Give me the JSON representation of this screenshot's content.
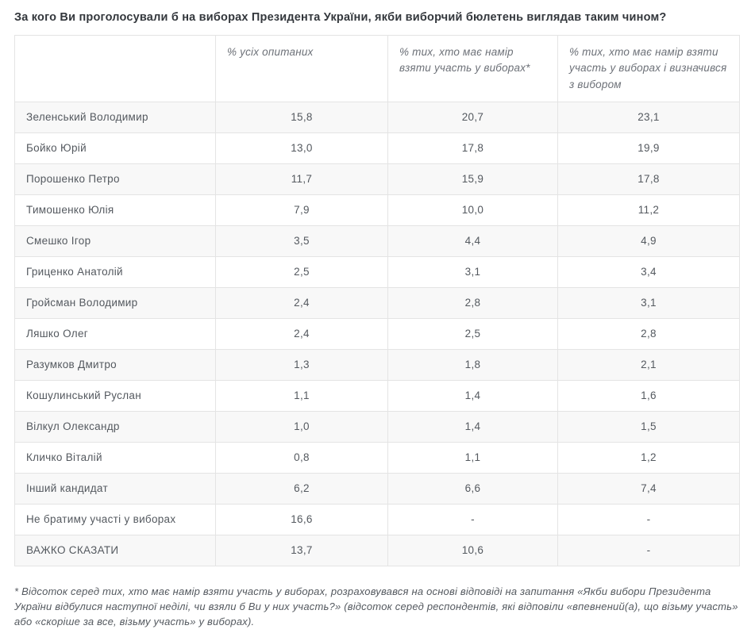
{
  "page": {
    "title": "За кого Ви проголосували б на виборах Президента України, якби виборчий бюлетень виглядав таким чином?",
    "footnote": "* Відсоток серед тих, хто має намір взяти участь у виборах, розраховувався на основі відповіді на запитання «Якби вибори Президента України відбулися наступної неділі, чи взяли б Ви у них участь?» (відсоток серед респондентів, які відповіли «впевнений(а), що візьму участь» або «скоріше за все, візьму участь» у виборах)."
  },
  "colors": {
    "row_stripe": "#f8f8f8",
    "border": "#e4e4e4",
    "body_text": "#54595f",
    "header_text": "#6d7178",
    "title_text": "#33373c"
  },
  "chart_data": {
    "type": "table",
    "title": "За кого Ви проголосували б на виборах Президента України, якби виборчий бюлетень виглядав таким чином?",
    "columns": [
      "",
      "% усіх опитаних",
      "% тих, хто має намір взяти участь у виборах*",
      "% тих, хто має намір взяти участь у виборах і визначився з вибором"
    ],
    "rows": [
      {
        "label": "Зеленський Володимир",
        "values": [
          "15,8",
          "20,7",
          "23,1"
        ]
      },
      {
        "label": "Бойко Юрій",
        "values": [
          "13,0",
          "17,8",
          "19,9"
        ]
      },
      {
        "label": "Порошенко Петро",
        "values": [
          "11,7",
          "15,9",
          "17,8"
        ]
      },
      {
        "label": "Тимошенко Юлія",
        "values": [
          "7,9",
          "10,0",
          "11,2"
        ]
      },
      {
        "label": "Смешко Ігор",
        "values": [
          "3,5",
          "4,4",
          "4,9"
        ]
      },
      {
        "label": "Гриценко Анатолій",
        "values": [
          "2,5",
          "3,1",
          "3,4"
        ]
      },
      {
        "label": "Гройсман Володимир",
        "values": [
          "2,4",
          "2,8",
          "3,1"
        ]
      },
      {
        "label": "Ляшко Олег",
        "values": [
          "2,4",
          "2,5",
          "2,8"
        ]
      },
      {
        "label": "Разумков Дмитро",
        "values": [
          "1,3",
          "1,8",
          "2,1"
        ]
      },
      {
        "label": "Кошулинський Руслан",
        "values": [
          "1,1",
          "1,4",
          "1,6"
        ]
      },
      {
        "label": "Вілкул Олександр",
        "values": [
          "1,0",
          "1,4",
          "1,5"
        ]
      },
      {
        "label": "Кличко Віталій",
        "values": [
          "0,8",
          "1,1",
          "1,2"
        ]
      },
      {
        "label": "Інший кандидат",
        "values": [
          "6,2",
          "6,6",
          "7,4"
        ]
      },
      {
        "label": "Не братиму участі у виборах",
        "values": [
          "16,6",
          "-",
          "-"
        ]
      },
      {
        "label": "ВАЖКО СКАЗАТИ",
        "values": [
          "13,7",
          "10,6",
          "-"
        ]
      }
    ]
  }
}
